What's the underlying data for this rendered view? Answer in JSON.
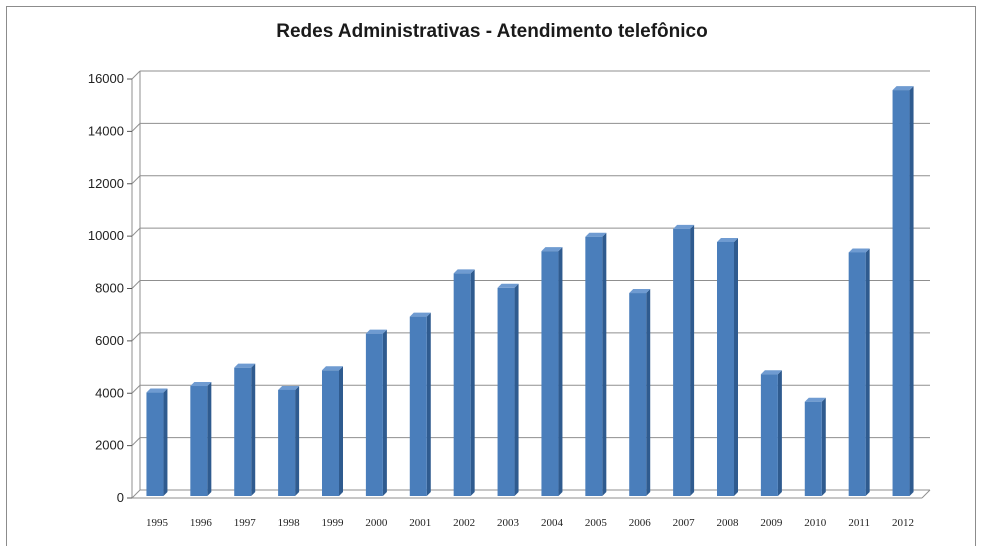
{
  "chart_data": {
    "type": "bar",
    "title": "Redes Administrativas - Atendimento telefônico",
    "categories": [
      "1995",
      "1996",
      "1997",
      "1998",
      "1999",
      "2000",
      "2001",
      "2002",
      "2003",
      "2004",
      "2005",
      "2006",
      "2007",
      "2008",
      "2009",
      "2010",
      "2011",
      "2012"
    ],
    "values": [
      3950,
      4200,
      4900,
      4050,
      4800,
      6200,
      6850,
      8500,
      7950,
      9350,
      9900,
      7750,
      10200,
      9700,
      4650,
      3600,
      9300,
      15500
    ],
    "ylim": [
      0,
      16000
    ],
    "yticks": [
      "0",
      "2000",
      "4000",
      "6000",
      "8000",
      "10000",
      "12000",
      "14000",
      "16000"
    ],
    "grid": true,
    "legend": "none",
    "colors": {
      "bar_front": "#4a7ebb",
      "bar_side": "#2f5b8f",
      "bar_top": "#6f9bd1",
      "grid": "#8f8f8f"
    }
  }
}
